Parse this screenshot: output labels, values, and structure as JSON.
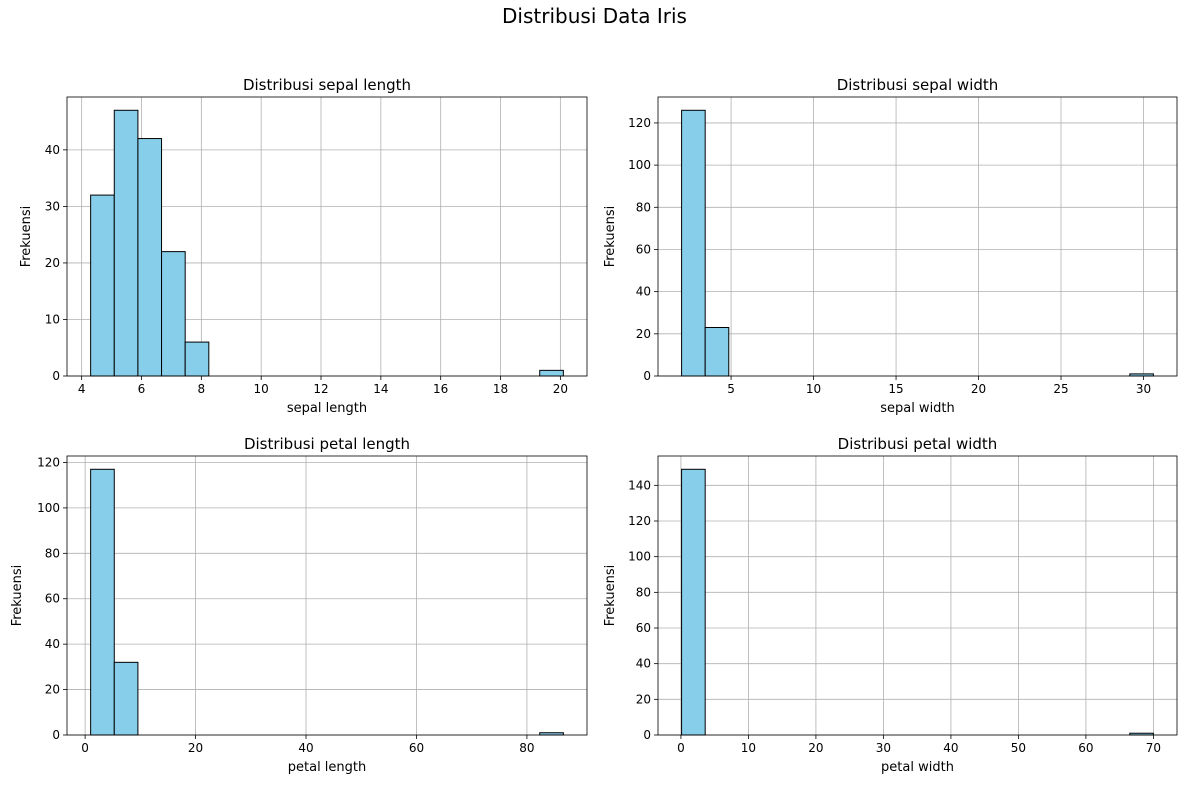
{
  "figure": {
    "title": "Distribusi Data Iris"
  },
  "colors": {
    "bar_fill": "#87ceeb",
    "bar_edge": "#000000",
    "grid": "#b0b0b0"
  },
  "chart_data": [
    {
      "type": "bar",
      "title": "Distribusi sepal length",
      "xlabel": "sepal length",
      "ylabel": "Frekuensi",
      "bin_edges": [
        4.3,
        5.09,
        5.88,
        6.67,
        7.46,
        8.25,
        9.04,
        9.83,
        10.62,
        11.41,
        12.2,
        12.99,
        13.78,
        14.57,
        15.36,
        16.15,
        16.94,
        17.73,
        18.52,
        19.31,
        20.1
      ],
      "values": [
        32,
        47,
        42,
        22,
        6,
        0,
        0,
        0,
        0,
        0,
        0,
        0,
        0,
        0,
        0,
        0,
        0,
        0,
        0,
        1
      ],
      "xlim": [
        3.51,
        20.89
      ],
      "ylim": [
        0,
        49.35
      ],
      "xticks": [
        4,
        6,
        8,
        10,
        12,
        14,
        16,
        18,
        20
      ],
      "yticks": [
        0,
        10,
        20,
        30,
        40
      ],
      "grid": true
    },
    {
      "type": "bar",
      "title": "Distribusi sepal width",
      "xlabel": "sepal width",
      "ylabel": "Frekuensi",
      "bin_edges": [
        2.0,
        3.43,
        4.86,
        6.29,
        7.72,
        9.15,
        10.58,
        12.01,
        13.44,
        14.87,
        16.3,
        17.73,
        19.16,
        20.59,
        22.02,
        23.45,
        24.88,
        26.31,
        27.74,
        29.17,
        30.6
      ],
      "values": [
        126,
        23,
        0,
        0,
        0,
        0,
        0,
        0,
        0,
        0,
        0,
        0,
        0,
        0,
        0,
        0,
        0,
        0,
        0,
        1
      ],
      "xlim": [
        0.57,
        32.03
      ],
      "ylim": [
        0,
        132.3
      ],
      "xticks": [
        5,
        10,
        15,
        20,
        25,
        30
      ],
      "yticks": [
        0,
        20,
        40,
        60,
        80,
        100,
        120
      ],
      "grid": true
    },
    {
      "type": "bar",
      "title": "Distribusi petal length",
      "xlabel": "petal length",
      "ylabel": "Frekuensi",
      "bin_edges": [
        1.0,
        5.28,
        9.56,
        13.84,
        18.12,
        22.4,
        26.68,
        30.96,
        35.24,
        39.52,
        43.8,
        48.08,
        52.36,
        56.64,
        60.92,
        65.2,
        69.48,
        73.76,
        78.04,
        82.32,
        86.6
      ],
      "values": [
        117,
        32,
        0,
        0,
        0,
        0,
        0,
        0,
        0,
        0,
        0,
        0,
        0,
        0,
        0,
        0,
        0,
        0,
        0,
        1
      ],
      "xlim": [
        -3.28,
        90.88
      ],
      "ylim": [
        0,
        122.85
      ],
      "xticks": [
        0,
        20,
        40,
        60,
        80
      ],
      "yticks": [
        0,
        20,
        40,
        60,
        80,
        100,
        120
      ],
      "grid": true
    },
    {
      "type": "bar",
      "title": "Distribusi petal width",
      "xlabel": "petal width",
      "ylabel": "Frekuensi",
      "bin_edges": [
        0.1,
        3.595,
        7.09,
        10.585,
        14.08,
        17.575,
        21.07,
        24.565,
        28.06,
        31.555,
        35.05,
        38.545,
        42.04,
        45.535,
        49.03,
        52.525,
        56.02,
        59.515,
        63.01,
        66.505,
        70.0
      ],
      "values": [
        149,
        0,
        0,
        0,
        0,
        0,
        0,
        0,
        0,
        0,
        0,
        0,
        0,
        0,
        0,
        0,
        0,
        0,
        0,
        1
      ],
      "xlim": [
        -3.395,
        73.495
      ],
      "ylim": [
        0,
        156.45
      ],
      "xticks": [
        0,
        10,
        20,
        30,
        40,
        50,
        60,
        70
      ],
      "yticks": [
        0,
        20,
        40,
        60,
        80,
        100,
        120,
        140
      ],
      "grid": true
    }
  ]
}
